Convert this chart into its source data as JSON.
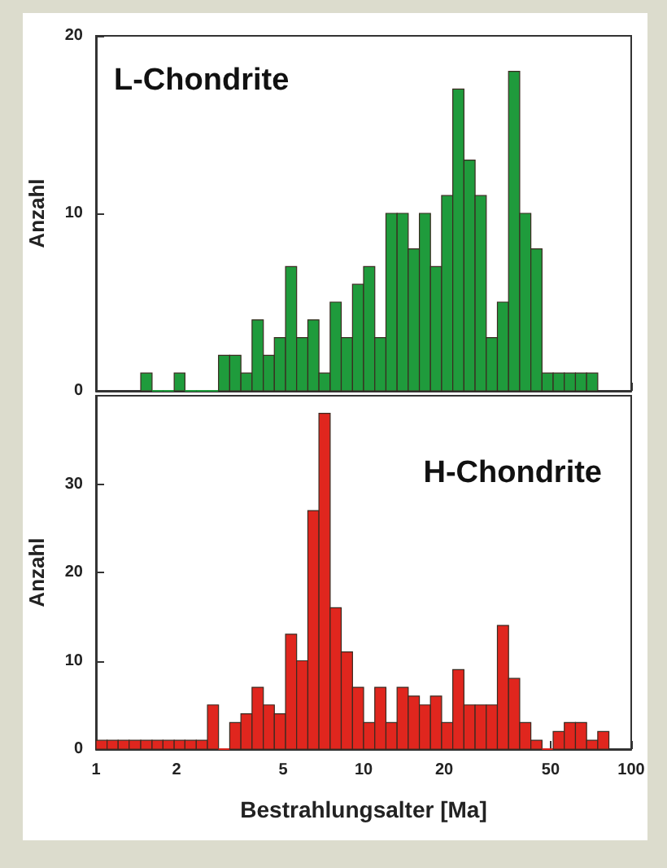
{
  "chart_data": [
    {
      "type": "histogram",
      "ylabel": "Anzahl",
      "annotations": [
        "L-Chondrite"
      ],
      "color": "#1f9b3c",
      "bins": [
        1.47,
        1.62,
        1.78,
        1.96,
        2.15,
        2.37,
        2.61,
        2.87,
        3.16,
        3.48,
        3.83,
        4.22,
        4.64,
        5.11,
        5.62,
        6.19,
        6.81,
        7.5,
        8.25,
        9.09,
        10,
        11.01,
        12.12,
        13.34,
        14.68,
        16.16,
        17.78,
        19.57,
        21.54,
        23.71,
        26.1,
        28.73,
        31.62,
        34.81,
        38.31,
        42.17,
        46.42,
        51.09,
        56.23,
        61.9,
        68.13,
        74.99
      ],
      "values": [
        1,
        0,
        0,
        1,
        0,
        0,
        0,
        2,
        2,
        1,
        4,
        2,
        3,
        7,
        3,
        4,
        1,
        5,
        3,
        6,
        7,
        3,
        10,
        10,
        8,
        10,
        7,
        11,
        17,
        13,
        11,
        3,
        5,
        18,
        10,
        8,
        1,
        1,
        1,
        1,
        1
      ],
      "xlim": [
        1,
        100
      ],
      "xticks": [
        1,
        2,
        5,
        10,
        20,
        50,
        100
      ],
      "log": "x",
      "ylim": [
        0,
        20
      ],
      "yticks": [
        0,
        10,
        20
      ],
      "tick_labels": "y"
    },
    {
      "type": "histogram",
      "xlabel": "Bestrahlungsalter [Ma]",
      "ylabel": "Anzahl",
      "annotations": [
        "H-Chondrite"
      ],
      "color": "#e0261e",
      "bins": [
        1,
        1.1,
        1.21,
        1.33,
        1.47,
        1.62,
        1.78,
        1.96,
        2.15,
        2.37,
        2.61,
        2.87,
        3.16,
        3.48,
        3.83,
        4.22,
        4.64,
        5.11,
        5.62,
        6.19,
        6.81,
        7.5,
        8.25,
        9.09,
        10,
        11.01,
        12.12,
        13.34,
        14.68,
        16.16,
        17.78,
        19.57,
        21.54,
        23.71,
        26.1,
        28.73,
        31.62,
        34.81,
        38.31,
        42.17,
        46.42,
        51.09,
        56.23,
        61.9,
        68.13,
        74.99,
        82.54
      ],
      "values": [
        1,
        1,
        1,
        1,
        1,
        1,
        1,
        1,
        1,
        1,
        5,
        0,
        3,
        4,
        7,
        5,
        4,
        13,
        10,
        27,
        38,
        16,
        11,
        7,
        3,
        7,
        3,
        7,
        6,
        5,
        6,
        3,
        9,
        5,
        5,
        5,
        14,
        8,
        3,
        1,
        0,
        2,
        3,
        3,
        1,
        2
      ],
      "xlim": [
        1,
        100
      ],
      "xticks": [
        1,
        2,
        5,
        10,
        20,
        50,
        100
      ],
      "log": "x",
      "ylim": [
        0,
        40
      ],
      "yticks": [
        0,
        10,
        20,
        30
      ]
    }
  ]
}
